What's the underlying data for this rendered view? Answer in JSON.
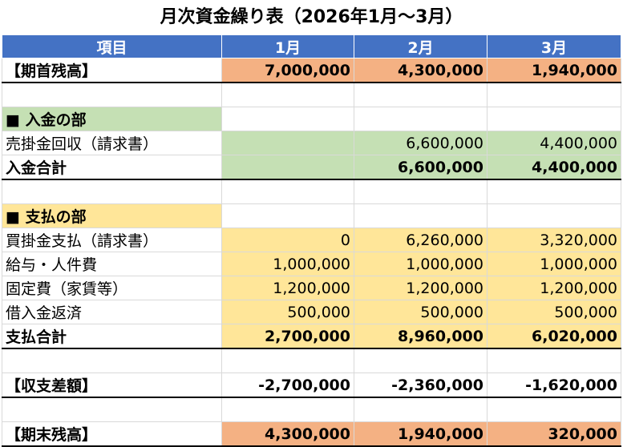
{
  "title": "月次資金繰り表（2026年1月～3月）",
  "header": [
    "項目",
    "1月",
    "2月",
    "3月"
  ],
  "opening": {
    "label": "【期首残高】",
    "values": [
      "7,000,000",
      "4,300,000",
      "1,940,000"
    ]
  },
  "income_section": "■ 入金の部",
  "income_row": {
    "label": "売掛金回収（請求書）",
    "values": [
      "",
      "6,600,000",
      "4,400,000"
    ]
  },
  "income_total": {
    "label": "入金合計",
    "values": [
      "",
      "6,600,000",
      "4,400,000"
    ]
  },
  "expense_section": "■ 支払の部",
  "expense_rows": [
    {
      "label": "買掛金支払（請求書）",
      "values": [
        "0",
        "6,260,000",
        "3,320,000"
      ]
    },
    {
      "label": "給与・人件費",
      "values": [
        "1,000,000",
        "1,000,000",
        "1,000,000"
      ]
    },
    {
      "label": "固定費（家賃等）",
      "values": [
        "1,200,000",
        "1,200,000",
        "1,200,000"
      ]
    },
    {
      "label": "借入金返済",
      "values": [
        "500,000",
        "500,000",
        "500,000"
      ]
    }
  ],
  "expense_total": {
    "label": "支払合計",
    "values": [
      "2,700,000",
      "8,960,000",
      "6,020,000"
    ]
  },
  "balance": {
    "label": "【収支差額】",
    "values": [
      "-2,700,000",
      "-2,360,000",
      "-1,620,000"
    ]
  },
  "closing": {
    "label": "【期末残高】",
    "values": [
      "4,300,000",
      "1,940,000",
      "320,000"
    ]
  },
  "colors": {
    "header": "#4472c4",
    "balance_row": "#f4b183",
    "income": "#c5e0b4",
    "expense": "#ffe699"
  }
}
